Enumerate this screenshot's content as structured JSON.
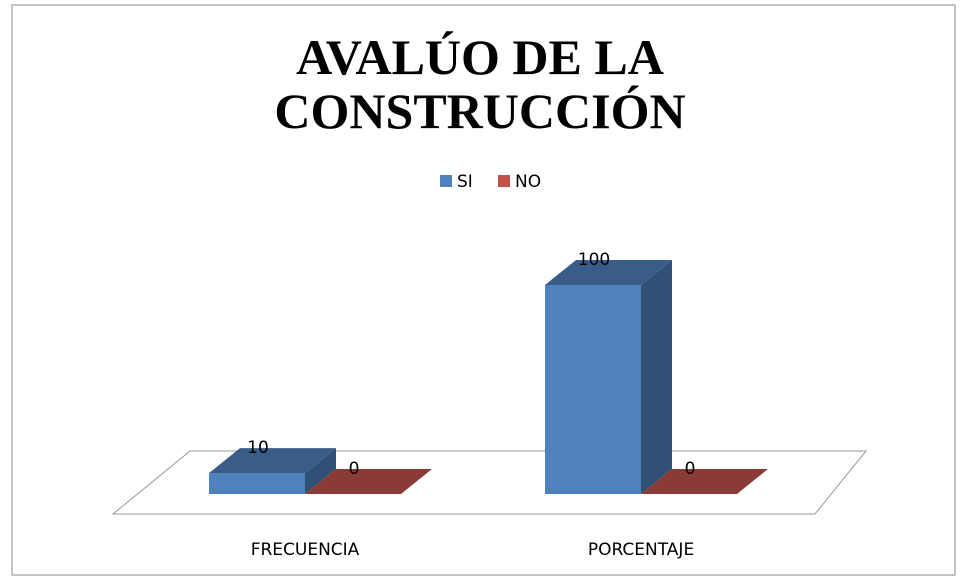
{
  "chart_data": {
    "type": "bar3d",
    "title": "AVALÚO DE LA CONSTRUCCIÓN",
    "categories": [
      "FRECUENCIA",
      "PORCENTAJE"
    ],
    "series": [
      {
        "name": "SI",
        "color": "#4f81bd",
        "values": [
          10,
          100
        ]
      },
      {
        "name": "NO",
        "color": "#c0504d",
        "values": [
          0,
          0
        ]
      }
    ],
    "legend": "top"
  }
}
